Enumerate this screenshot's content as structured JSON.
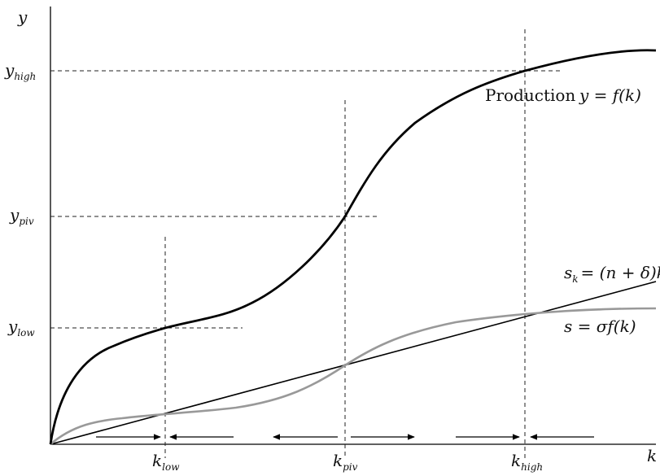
{
  "diagram": {
    "axis_labels": {
      "y": "y",
      "x": "k"
    },
    "y_ticks": {
      "high": {
        "main": "y",
        "sub": "high"
      },
      "piv": {
        "main": "y",
        "sub": "piv"
      },
      "low": {
        "main": "y",
        "sub": "low"
      }
    },
    "x_ticks": {
      "low": {
        "main": "k",
        "sub": "low"
      },
      "piv": {
        "main": "k",
        "sub": "piv"
      },
      "high": {
        "main": "k",
        "sub": "high"
      }
    },
    "curve_labels": {
      "production": {
        "word": "Production",
        "eq": "y = f(k)"
      },
      "requirement": {
        "main": "s",
        "sub": "k",
        "eq": "= (n + δ)k"
      },
      "saving": {
        "eq": "s = σf(k)"
      }
    },
    "colors": {
      "production": "#000000",
      "saving": "#999999",
      "requirement": "#000000",
      "guides": "#222222"
    },
    "arrows": [
      "right",
      "left",
      "left",
      "right",
      "right",
      "left"
    ]
  }
}
